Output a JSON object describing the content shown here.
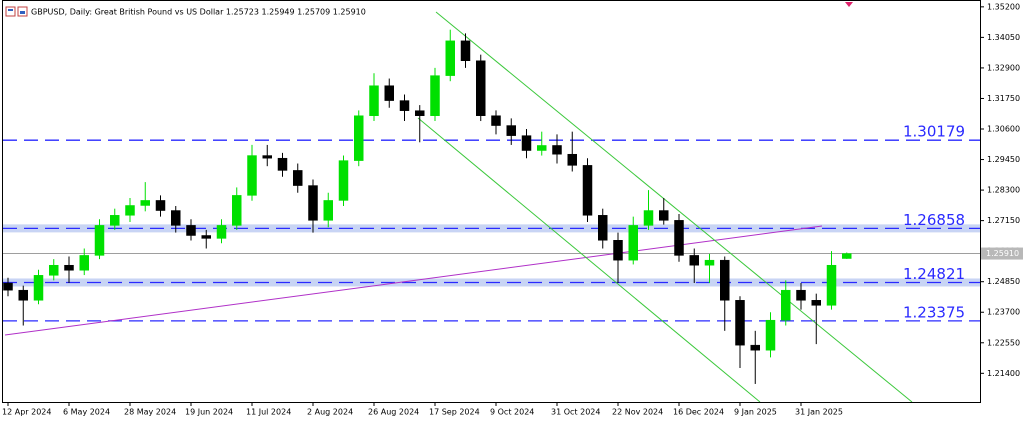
{
  "chart_data": {
    "type": "candlestick",
    "title": "GBPUSD, Daily:  Great British Pound vs US Dollar  1.25723 1.25949 1.25709 1.25910",
    "categories": [
      "12 Apr 2024",
      null,
      null,
      null,
      "6 May 2024",
      null,
      null,
      null,
      "28 May 2024",
      null,
      null,
      null,
      "19 Jun 2024",
      null,
      null,
      null,
      "11 Jul 2024",
      null,
      null,
      null,
      "2 Aug 2024",
      null,
      null,
      null,
      "26 Aug 2024",
      null,
      null,
      null,
      "17 Sep 2024",
      null,
      null,
      null,
      "9 Oct 2024",
      null,
      null,
      null,
      "31 Oct 2024",
      null,
      null,
      null,
      "22 Nov 2024",
      null,
      null,
      null,
      "16 Dec 2024",
      null,
      null,
      null,
      "9 Jan 2025",
      null,
      null,
      null,
      "31 Jan 2025",
      null,
      null,
      null
    ],
    "open": [
      1.248,
      1.2453,
      1.2415,
      1.2509,
      1.2547,
      1.2528,
      1.2584,
      1.2697,
      1.2735,
      1.2772,
      1.2791,
      1.2753,
      1.2697,
      1.2659,
      1.2648,
      1.2697,
      1.281,
      1.296,
      1.295,
      1.2904,
      1.2847,
      1.2716,
      1.2791,
      1.2941,
      1.311,
      1.3223,
      1.3167,
      1.3129,
      1.311,
      1.3261,
      1.3392,
      1.3317,
      1.311,
      1.3073,
      1.3035,
      1.2979,
      1.2998,
      1.2965,
      1.2923,
      1.2735,
      1.2641,
      1.2566,
      1.2697,
      1.2753,
      1.2716,
      1.2584,
      1.2547,
      1.2566,
      1.2415,
      1.2246,
      1.2227,
      1.234,
      1.2453,
      1.2415,
      1.2396,
      1.25723
    ],
    "high": [
      1.25,
      1.247,
      1.253,
      1.257,
      1.258,
      1.261,
      1.272,
      1.276,
      1.28,
      1.286,
      1.281,
      1.277,
      1.272,
      1.268,
      1.272,
      1.284,
      1.3,
      1.3,
      1.297,
      1.293,
      1.287,
      1.282,
      1.296,
      1.313,
      1.327,
      1.325,
      1.319,
      1.315,
      1.329,
      1.3434,
      1.342,
      1.334,
      1.313,
      1.31,
      1.306,
      1.305,
      1.304,
      1.305,
      1.295,
      1.276,
      1.267,
      1.273,
      1.283,
      1.28,
      1.274,
      1.261,
      1.259,
      1.258,
      1.243,
      1.23,
      1.237,
      1.249,
      1.248,
      1.244,
      1.26,
      1.25949
    ],
    "low": [
      1.243,
      1.232,
      1.24,
      1.249,
      1.248,
      1.251,
      1.257,
      1.268,
      1.271,
      1.275,
      1.273,
      1.267,
      1.264,
      1.261,
      1.263,
      1.268,
      1.279,
      1.292,
      1.288,
      1.282,
      1.267,
      1.269,
      1.277,
      1.292,
      1.309,
      1.314,
      1.309,
      1.301,
      1.309,
      1.324,
      1.329,
      1.309,
      1.304,
      1.3,
      1.295,
      1.296,
      1.293,
      1.29,
      1.271,
      1.261,
      1.248,
      1.255,
      1.268,
      1.27,
      1.256,
      1.248,
      1.248,
      1.23,
      1.216,
      1.21,
      1.22,
      1.232,
      1.238,
      1.225,
      1.238,
      1.25709
    ],
    "close": [
      1.2453,
      1.2415,
      1.2509,
      1.2547,
      1.2528,
      1.2584,
      1.2697,
      1.2735,
      1.2772,
      1.2791,
      1.2753,
      1.2697,
      1.2659,
      1.2648,
      1.2697,
      1.281,
      1.296,
      1.295,
      1.2904,
      1.2847,
      1.2716,
      1.2791,
      1.2941,
      1.311,
      1.3223,
      1.3167,
      1.3129,
      1.311,
      1.3261,
      1.3392,
      1.3317,
      1.311,
      1.3073,
      1.3035,
      1.2979,
      1.2998,
      1.2965,
      1.2923,
      1.2735,
      1.2641,
      1.2566,
      1.2697,
      1.2753,
      1.2716,
      1.2584,
      1.2547,
      1.2566,
      1.2415,
      1.2246,
      1.2227,
      1.234,
      1.2453,
      1.2415,
      1.2396,
      1.2547,
      1.2591
    ],
    "up_color": "#00e000",
    "down_color": "#000000",
    "ylim": [
      1.2032,
      1.3542
    ],
    "yticks": [
      {
        "value": 1.352,
        "label": "1.35200"
      },
      {
        "value": 1.3405,
        "label": "1.34050"
      },
      {
        "value": 1.329,
        "label": "1.32900"
      },
      {
        "value": 1.3175,
        "label": "1.31750"
      },
      {
        "value": 1.306,
        "label": "1.30600"
      },
      {
        "value": 1.2945,
        "label": "1.29450"
      },
      {
        "value": 1.283,
        "label": "1.28300"
      },
      {
        "value": 1.2715,
        "label": "1.27150"
      },
      {
        "value": 1.26,
        "label": "1.26000"
      },
      {
        "value": 1.2485,
        "label": "1.24850"
      },
      {
        "value": 1.237,
        "label": "1.23700"
      },
      {
        "value": 1.2255,
        "label": "1.22550"
      },
      {
        "value": 1.214,
        "label": "1.21400"
      }
    ],
    "levels": [
      {
        "value": 1.30179,
        "label": "1.30179",
        "highlight": false
      },
      {
        "value": 1.26858,
        "label": "1.26858",
        "highlight": true
      },
      {
        "value": 1.24821,
        "label": "1.24821",
        "highlight": true
      },
      {
        "value": 1.23375,
        "label": "1.23375",
        "highlight": false
      }
    ],
    "level_color": "#2a2aff",
    "current_price": {
      "value": 1.2591,
      "label": "1.25910"
    }
  }
}
